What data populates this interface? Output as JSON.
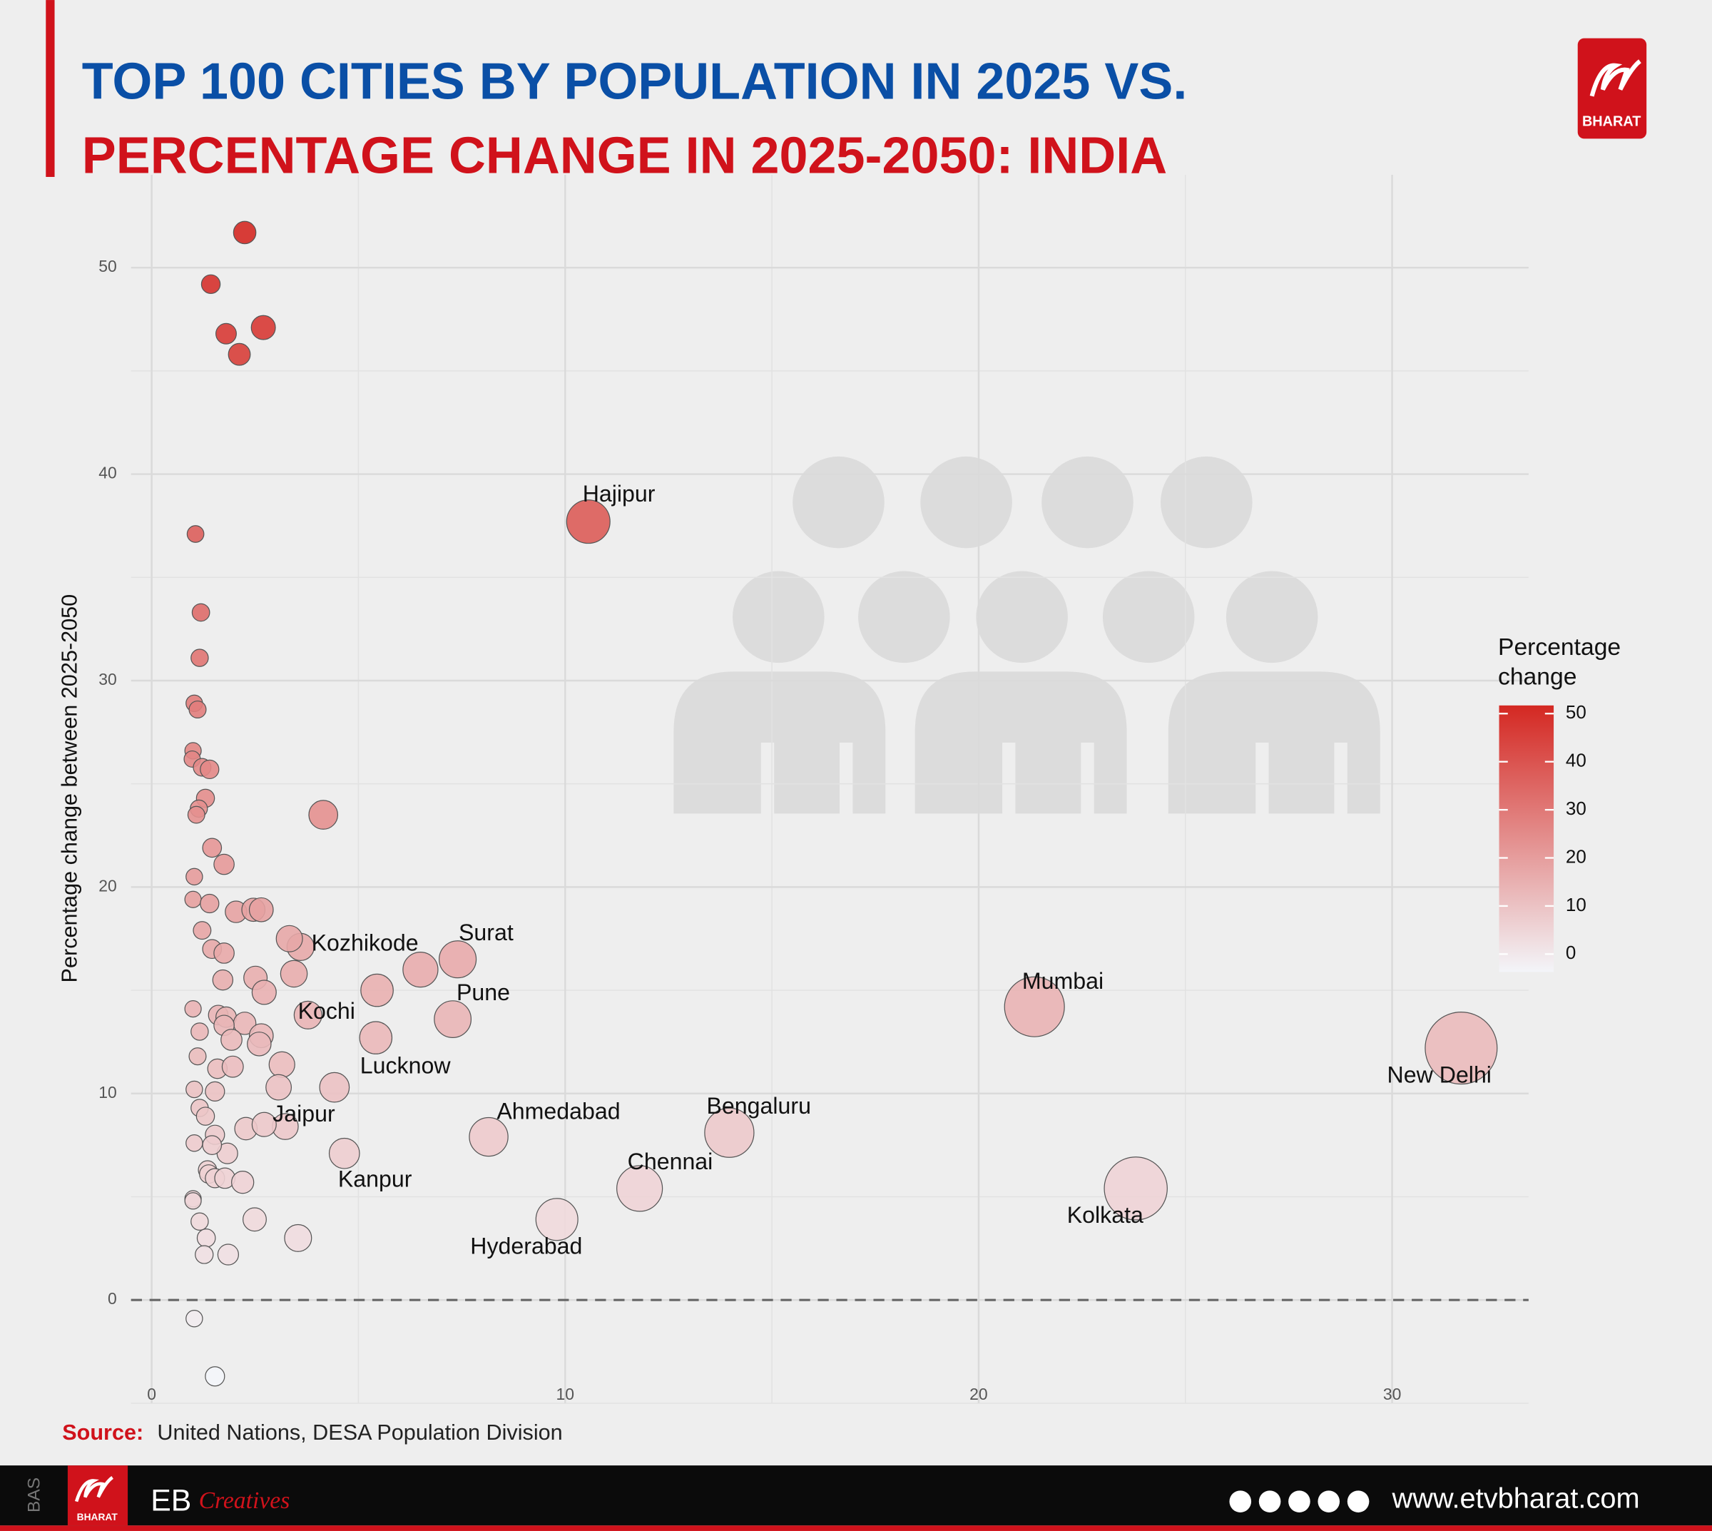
{
  "header": {
    "title_line1": "TOP 100 CITIES BY POPULATION IN 2025 VS.",
    "title_line2": "PERCENTAGE CHANGE IN 2025-2050: INDIA",
    "logo_text": "BHARAT"
  },
  "chart_data": {
    "type": "scatter",
    "y_label": "Percentage change between 2025-2050",
    "x": [
      10.56,
      21.35,
      31.67,
      23.8,
      13.97,
      11.8,
      9.8,
      8.15,
      7.4,
      7.28,
      5.42,
      4.66,
      3.23,
      3.78,
      3.6,
      2.25,
      1.43,
      1.8,
      2.7,
      2.12,
      1.06,
      1.19,
      1.16,
      1.03,
      1.11,
      1.0,
      0.98,
      1.22,
      1.4,
      1.3,
      1.14,
      1.08,
      4.15,
      1.46,
      1.75,
      1.03,
      1.0,
      1.4,
      2.04,
      2.46,
      2.65,
      1.22,
      3.33,
      1.46,
      1.75,
      6.5,
      1.72,
      2.51,
      3.44,
      5.45,
      2.72,
      1.0,
      1.61,
      1.8,
      2.25,
      1.75,
      1.16,
      2.65,
      2.6,
      1.93,
      1.11,
      3.15,
      1.59,
      1.96,
      4.42,
      3.07,
      1.03,
      1.53,
      1.16,
      1.3,
      2.28,
      2.72,
      1.53,
      1.03,
      1.83,
      1.46,
      1.35,
      1.38,
      1.53,
      1.77,
      2.2,
      1.0,
      1.0,
      2.49,
      1.16,
      1.32,
      3.54,
      1.85,
      1.27,
      1.03,
      1.53
    ],
    "series": [
      {
        "name": "Percentage change",
        "values": [
          37.7,
          14.2,
          12.2,
          5.4,
          8.1,
          5.4,
          3.9,
          7.9,
          16.5,
          13.6,
          12.7,
          7.1,
          8.4,
          13.8,
          17.1,
          51.7,
          49.2,
          46.8,
          47.1,
          45.8,
          37.1,
          33.3,
          31.1,
          28.9,
          28.6,
          26.6,
          26.2,
          25.8,
          25.7,
          24.3,
          23.8,
          23.5,
          23.5,
          21.9,
          21.1,
          20.5,
          19.4,
          19.2,
          18.8,
          18.9,
          18.9,
          17.9,
          17.5,
          17.0,
          16.8,
          16.0,
          15.5,
          15.6,
          15.8,
          15.0,
          14.9,
          14.1,
          13.8,
          13.7,
          13.4,
          13.3,
          13.0,
          12.8,
          12.4,
          12.6,
          11.8,
          11.4,
          11.2,
          11.3,
          10.3,
          10.3,
          10.2,
          10.1,
          9.3,
          8.9,
          8.3,
          8.5,
          8.0,
          7.6,
          7.1,
          7.5,
          6.3,
          6.1,
          5.9,
          5.9,
          5.7,
          4.9,
          4.8,
          3.9,
          3.8,
          3.0,
          3.0,
          2.2,
          2.2,
          -0.9,
          -3.7
        ]
      }
    ],
    "point_labels": [
      "Hajipur",
      "Mumbai",
      "New Delhi",
      "Kolkata",
      "Bengaluru",
      "Chennai",
      "Hyderabad",
      "Ahmedabad",
      "Surat",
      "Pune",
      "Lucknow",
      "Kanpur",
      "Jaipur",
      "Kochi",
      "Kozhikode",
      null,
      null,
      null,
      null,
      null,
      null,
      null,
      null,
      null,
      null,
      null,
      null,
      null,
      null,
      null,
      null,
      null,
      null,
      null,
      null,
      null,
      null,
      null,
      null,
      null,
      null,
      null,
      null,
      null,
      null,
      null,
      null,
      null,
      null,
      null,
      null,
      null,
      null,
      null,
      null,
      null,
      null,
      null,
      null,
      null,
      null,
      null,
      null,
      null,
      null,
      null,
      null,
      null,
      null,
      null,
      null,
      null,
      null,
      null,
      null,
      null,
      null,
      null,
      null,
      null,
      null,
      null,
      null,
      null,
      null,
      null,
      null,
      null,
      null,
      null,
      null
    ],
    "xlim": [
      -0.5,
      33.3
    ],
    "ylim": [
      -5,
      54.5
    ],
    "xticks": [
      0,
      10,
      20,
      30
    ],
    "yticks": [
      0,
      10,
      20,
      30,
      40,
      50
    ],
    "grid": true,
    "hline": 0,
    "color_scale": {
      "low": "#f3f5f9",
      "high": "#d42822",
      "lim": [
        -3.7,
        51.7
      ],
      "ticks": [
        0,
        10,
        20,
        30,
        40,
        50
      ]
    },
    "legend_title_lines": [
      "Percentage",
      "change"
    ],
    "legend_position": "right"
  },
  "source": {
    "label": "Source:",
    "text": "United Nations, DESA Population Division"
  },
  "footer": {
    "side_text": "BAS",
    "logo_text": "BHARAT",
    "brand": "EB",
    "brand_script": "Creatives",
    "url": "www.etvbharat.com"
  }
}
